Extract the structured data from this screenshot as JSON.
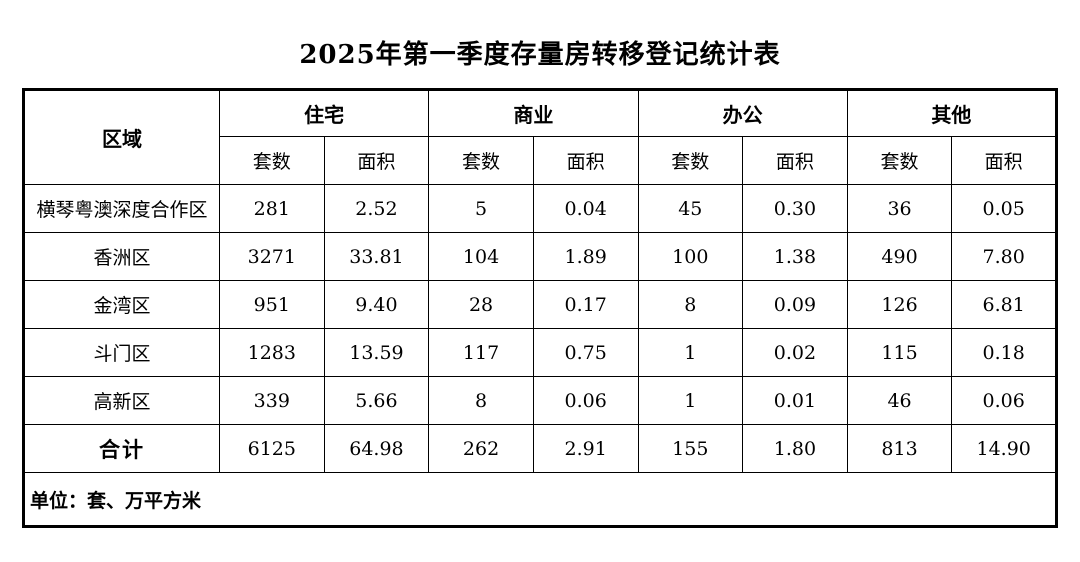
{
  "title": "2025年第一季度存量房转移登记统计表",
  "unit_note": "单位：套、万平方米",
  "table": {
    "region_header": "区域",
    "group_headers": [
      "住宅",
      "商业",
      "办公",
      "其他"
    ],
    "sub_headers": [
      "套数",
      "面积",
      "套数",
      "面积",
      "套数",
      "面积",
      "套数",
      "面积"
    ],
    "rows": [
      {
        "region": "横琴粤澳深度合作区",
        "values": [
          "281",
          "2.52",
          "5",
          "0.04",
          "45",
          "0.30",
          "36",
          "0.05"
        ]
      },
      {
        "region": "香洲区",
        "values": [
          "3271",
          "33.81",
          "104",
          "1.89",
          "100",
          "1.38",
          "490",
          "7.80"
        ]
      },
      {
        "region": "金湾区",
        "values": [
          "951",
          "9.40",
          "28",
          "0.17",
          "8",
          "0.09",
          "126",
          "6.81"
        ]
      },
      {
        "region": "斗门区",
        "values": [
          "1283",
          "13.59",
          "117",
          "0.75",
          "1",
          "0.02",
          "115",
          "0.18"
        ]
      },
      {
        "region": "高新区",
        "values": [
          "339",
          "5.66",
          "8",
          "0.06",
          "1",
          "0.01",
          "46",
          "0.06"
        ]
      }
    ],
    "total": {
      "region": "合计",
      "values": [
        "6125",
        "64.98",
        "262",
        "2.91",
        "155",
        "1.80",
        "813",
        "14.90"
      ]
    }
  }
}
